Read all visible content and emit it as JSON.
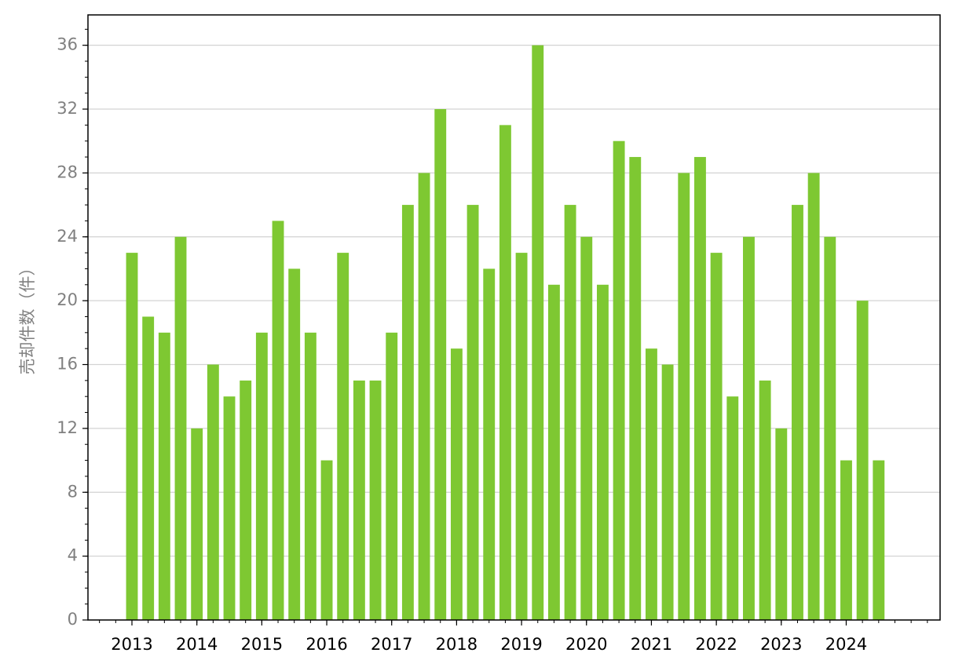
{
  "chart_data": {
    "type": "bar",
    "y_label": "売却件数（件）",
    "categories": [
      "2013",
      null,
      null,
      null,
      "2014",
      null,
      null,
      null,
      "2015",
      null,
      null,
      null,
      "2016",
      null,
      null,
      null,
      "2017",
      null,
      null,
      null,
      "2018",
      null,
      null,
      null,
      "2019",
      null,
      null,
      null,
      "2020",
      null,
      null,
      null,
      "2021",
      null,
      null,
      null,
      "2022",
      null,
      null,
      null,
      "2023",
      null,
      null,
      null,
      "2024",
      null,
      null
    ],
    "values": [
      23,
      19,
      18,
      24,
      12,
      16,
      14,
      15,
      18,
      25,
      22,
      18,
      10,
      23,
      15,
      15,
      18,
      26,
      28,
      32,
      17,
      26,
      22,
      31,
      23,
      36,
      21,
      26,
      24,
      21,
      30,
      29,
      17,
      16,
      28,
      29,
      23,
      14,
      24,
      15,
      12,
      26,
      28,
      24,
      10,
      20,
      10
    ],
    "color": "#7ec832",
    "ylim": [
      0,
      37.9
    ],
    "yticks": [
      0,
      4,
      8,
      12,
      16,
      20,
      24,
      28,
      32,
      36
    ],
    "grid": true
  }
}
